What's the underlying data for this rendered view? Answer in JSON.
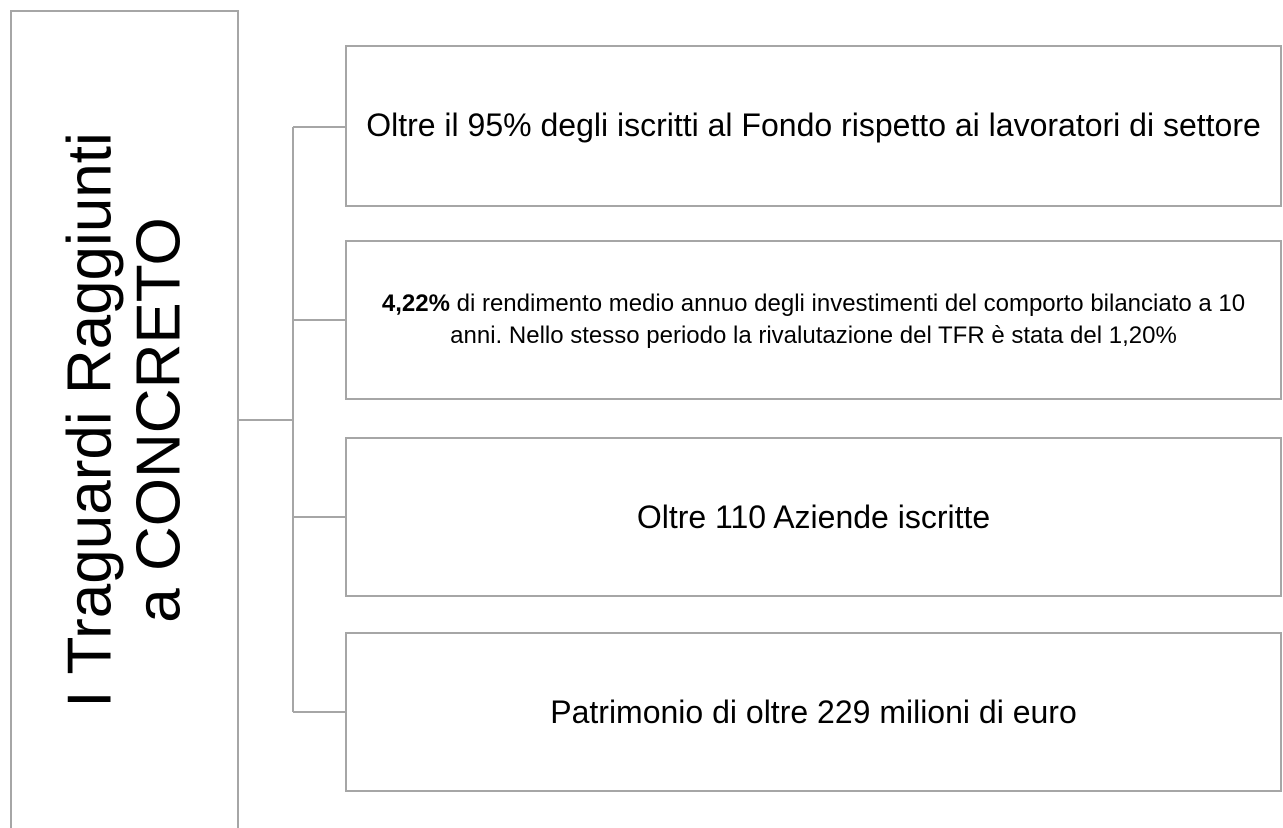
{
  "title": {
    "lines": [
      "I Traguardi Raggiunti",
      "a CONCRETO"
    ]
  },
  "items": [
    {
      "text": "Oltre il 95% degli iscritti al Fondo rispetto ai lavoratori di settore"
    },
    {
      "bold": "4,22%",
      "text": " di rendimento medio annuo degli investimenti del comporto bilanciato a 10 anni. Nello stesso periodo la rivalutazione del TFR è stata del 1,20%"
    },
    {
      "text": "Oltre 110 Aziende iscritte"
    },
    {
      "text": "Patrimonio di oltre 229 milioni di euro"
    }
  ]
}
